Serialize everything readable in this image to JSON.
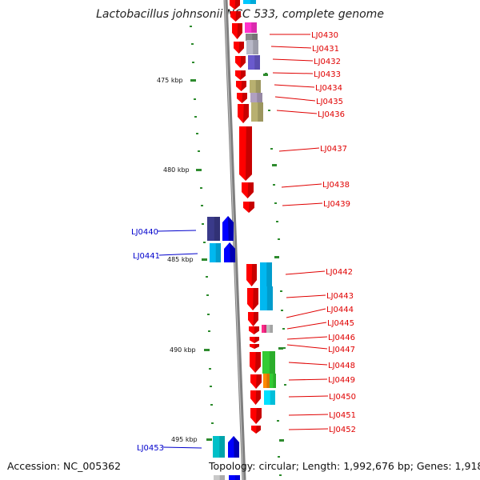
{
  "title": "Lactobacillus johnsonii NCC 533, complete genome",
  "footer": {
    "accession": "Accession: NC_005362",
    "summary": "Topology: circular; Length: 1,992,676 bp; Genes: 1,918"
  },
  "scale_labels": [
    "475 kbp",
    "480 kbp",
    "485 kbp",
    "490 kbp",
    "495 kbp"
  ],
  "colors": {
    "strand_line": "#808080",
    "tick": "#2e8b2e",
    "label_red": "#e00000",
    "label_blue": "#0000cc"
  },
  "gene_labels_right": [
    "LJ0430",
    "LJ0431",
    "LJ0432",
    "LJ0433",
    "LJ0434",
    "LJ0435",
    "LJ0436",
    "LJ0437",
    "LJ0438",
    "LJ0439",
    "LJ0442",
    "LJ0443",
    "LJ0444",
    "LJ0445",
    "LJ0446",
    "LJ0447",
    "LJ0448",
    "LJ0449",
    "LJ0450",
    "LJ0451",
    "LJ0452"
  ],
  "gene_labels_left": [
    "LJ0440",
    "LJ0441",
    "LJ0453"
  ]
}
